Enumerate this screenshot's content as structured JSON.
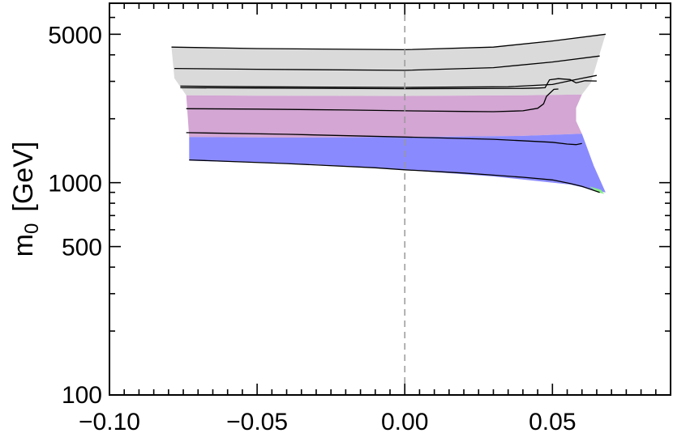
{
  "chart_data": {
    "type": "area",
    "title": "",
    "xlabel": "",
    "ylabel": "m₀  [GeV]",
    "ylabel_parts": {
      "symbol": "m",
      "subscript": "0",
      "unit": "[GeV]"
    },
    "xlim": [
      -0.1,
      0.09
    ],
    "ylim": [
      100,
      7000
    ],
    "yscale": "log",
    "grid": false,
    "x_ticks": [
      -0.1,
      -0.05,
      0.0,
      0.05
    ],
    "x_tick_labels": [
      "−0.10",
      "−0.05",
      "0.00",
      "0.05"
    ],
    "y_ticks": [
      100,
      500,
      1000,
      5000
    ],
    "y_tick_labels": [
      "100",
      "500",
      "1000",
      "5000"
    ],
    "reference_line": {
      "x": 0.0,
      "style": "dashed",
      "color": "#999999"
    },
    "colors": {
      "gray_region": "#dadada",
      "pink_region": "#d3a6d3",
      "blue_region": "#8a8aff",
      "green_region": "#88ee88",
      "contours": "#000000"
    },
    "regions": [
      {
        "fill": "gray_region",
        "points": [
          [
            -0.079,
            4350
          ],
          [
            -0.05,
            4280
          ],
          [
            0.0,
            4230
          ],
          [
            0.03,
            4350
          ],
          [
            0.05,
            4650
          ],
          [
            0.068,
            5000
          ],
          [
            0.063,
            2950
          ],
          [
            0.06,
            2600
          ],
          [
            0.04,
            2580
          ],
          [
            0.0,
            2560
          ],
          [
            -0.05,
            2570
          ],
          [
            -0.074,
            2580
          ],
          [
            -0.078,
            3100
          ]
        ]
      },
      {
        "fill": "pink_region",
        "points": [
          [
            -0.074,
            2580
          ],
          [
            -0.05,
            2570
          ],
          [
            0.0,
            2560
          ],
          [
            0.04,
            2580
          ],
          [
            0.06,
            2600
          ],
          [
            0.058,
            2250
          ],
          [
            0.058,
            1950
          ],
          [
            0.06,
            1700
          ],
          [
            0.04,
            1660
          ],
          [
            0.0,
            1640
          ],
          [
            -0.04,
            1630
          ],
          [
            -0.073,
            1640
          ]
        ]
      },
      {
        "fill": "blue_region",
        "points": [
          [
            -0.073,
            1640
          ],
          [
            -0.04,
            1630
          ],
          [
            0.0,
            1640
          ],
          [
            0.04,
            1660
          ],
          [
            0.06,
            1700
          ],
          [
            0.064,
            1200
          ],
          [
            0.068,
            900
          ],
          [
            0.056,
            980
          ],
          [
            0.03,
            1070
          ],
          [
            0.0,
            1150
          ],
          [
            -0.03,
            1220
          ],
          [
            -0.073,
            1270
          ]
        ]
      },
      {
        "fill": "green_region",
        "points": [
          [
            0.0625,
            960
          ],
          [
            0.0665,
            925
          ],
          [
            0.0675,
            885
          ],
          [
            0.0655,
            900
          ]
        ]
      }
    ],
    "contours": [
      [
        [
          -0.079,
          4350
        ],
        [
          -0.05,
          4280
        ],
        [
          0.0,
          4230
        ],
        [
          0.03,
          4350
        ],
        [
          0.05,
          4650
        ],
        [
          0.068,
          5000
        ]
      ],
      [
        [
          -0.078,
          3450
        ],
        [
          -0.05,
          3420
        ],
        [
          0.0,
          3380
        ],
        [
          0.03,
          3480
        ],
        [
          0.05,
          3700
        ],
        [
          0.066,
          3950
        ]
      ],
      [
        [
          -0.076,
          2850
        ],
        [
          -0.05,
          2830
        ],
        [
          0.0,
          2810
        ],
        [
          0.035,
          2830
        ],
        [
          0.05,
          2900
        ],
        [
          0.055,
          3000
        ],
        [
          0.06,
          3100
        ],
        [
          0.065,
          3200
        ]
      ],
      [
        [
          -0.076,
          2800
        ],
        [
          -0.05,
          2790
        ],
        [
          0.0,
          2770
        ],
        [
          0.04,
          2780
        ],
        [
          0.045,
          2790
        ],
        [
          0.0475,
          2800
        ],
        [
          0.049,
          3050
        ],
        [
          0.052,
          3090
        ],
        [
          0.056,
          3060
        ],
        [
          0.058,
          2950
        ],
        [
          0.061,
          3020
        ],
        [
          0.065,
          3010
        ]
      ],
      [
        [
          -0.074,
          2230
        ],
        [
          -0.05,
          2220
        ],
        [
          -0.02,
          2200
        ],
        [
          0.0,
          2180
        ],
        [
          0.02,
          2165
        ],
        [
          0.03,
          2160
        ],
        [
          0.04,
          2180
        ],
        [
          0.045,
          2240
        ],
        [
          0.047,
          2350
        ],
        [
          0.048,
          2550
        ],
        [
          0.0505,
          2750
        ],
        [
          0.052,
          2760
        ]
      ],
      [
        [
          -0.074,
          1720
        ],
        [
          -0.04,
          1690
        ],
        [
          0.0,
          1640
        ],
        [
          0.03,
          1600
        ],
        [
          0.05,
          1550
        ],
        [
          0.055,
          1520
        ],
        [
          0.058,
          1510
        ],
        [
          0.06,
          1530
        ]
      ],
      [
        [
          -0.073,
          1280
        ],
        [
          -0.04,
          1230
        ],
        [
          -0.01,
          1175
        ],
        [
          0.0,
          1150
        ],
        [
          0.01,
          1130
        ],
        [
          0.02,
          1110
        ],
        [
          0.03,
          1085
        ],
        [
          0.04,
          1060
        ],
        [
          0.05,
          1030
        ],
        [
          0.056,
          990
        ],
        [
          0.06,
          960
        ],
        [
          0.064,
          920
        ],
        [
          0.066,
          900
        ]
      ]
    ]
  }
}
